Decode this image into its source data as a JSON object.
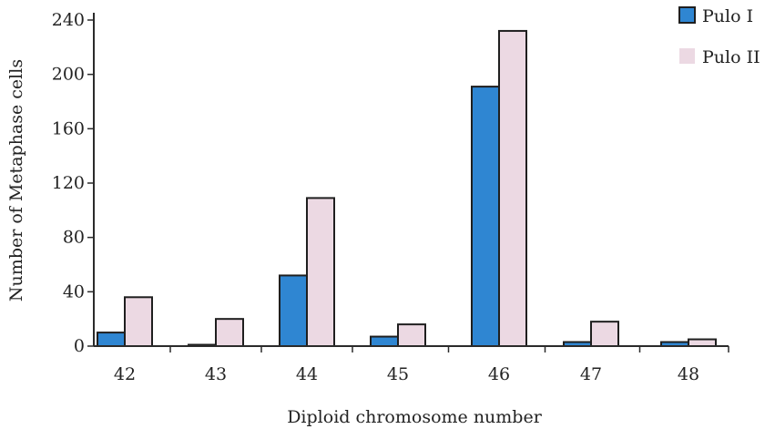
{
  "chart_data": {
    "type": "bar",
    "categories": [
      "42",
      "43",
      "44",
      "45",
      "46",
      "47",
      "48"
    ],
    "series": [
      {
        "name": "Pulo I",
        "values": [
          10,
          1,
          52,
          7,
          191,
          3,
          3
        ],
        "color": "#2f86d2"
      },
      {
        "name": "Pulo II",
        "values": [
          36,
          20,
          109,
          16,
          232,
          18,
          5
        ],
        "color": "#ecd9e3"
      }
    ],
    "xlabel": "Diploid chromosome number",
    "ylabel": "Number of Metaphase cells",
    "ylim": [
      0,
      240
    ],
    "yticks": [
      "0",
      "40",
      "80",
      "120",
      "160",
      "200",
      "240"
    ],
    "grid": false,
    "legend_position": "top-right"
  }
}
